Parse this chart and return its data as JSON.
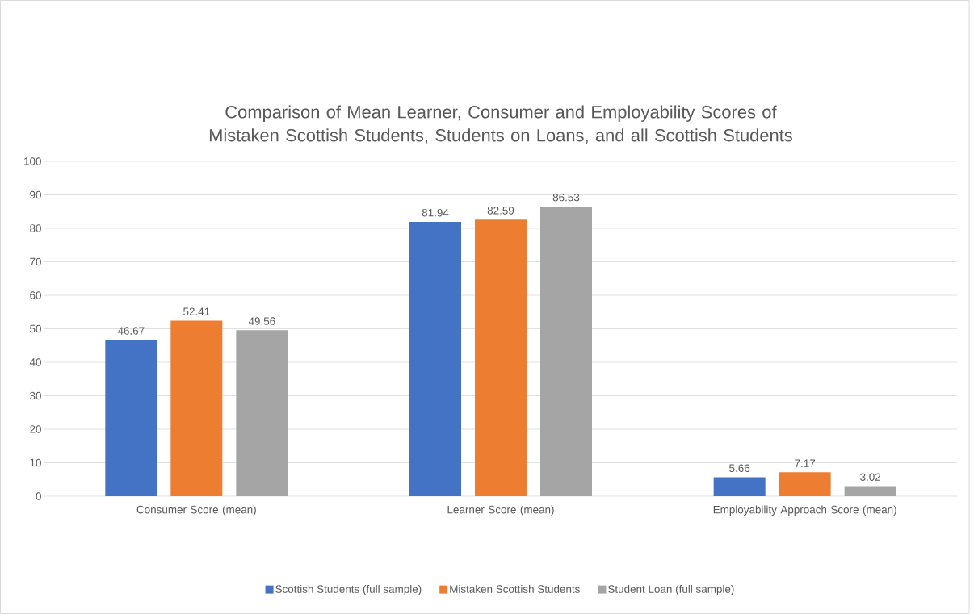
{
  "chart_data": {
    "type": "bar",
    "title": "Comparison of Mean Learner, Consumer and Employability Scores of Mistaken Scottish Students, Students on Loans, and all Scottish Students",
    "categories": [
      "Consumer Score (mean)",
      "Learner Score (mean)",
      "Employability Approach Score (mean)"
    ],
    "series": [
      {
        "name": "Scottish Students (full sample)",
        "color": "#4472c4",
        "values": [
          46.67,
          81.94,
          5.66
        ]
      },
      {
        "name": "Mistaken Scottish Students",
        "color": "#ed7d31",
        "values": [
          52.41,
          82.59,
          7.17
        ]
      },
      {
        "name": "Student Loan (full sample)",
        "color": "#a5a5a5",
        "values": [
          49.56,
          86.53,
          3.02
        ]
      }
    ],
    "ylim": [
      0,
      100
    ],
    "yticks": [
      0,
      10,
      20,
      30,
      40,
      50,
      60,
      70,
      80,
      90,
      100
    ],
    "grid": "y",
    "legend": "bottom",
    "data_labels": true
  }
}
